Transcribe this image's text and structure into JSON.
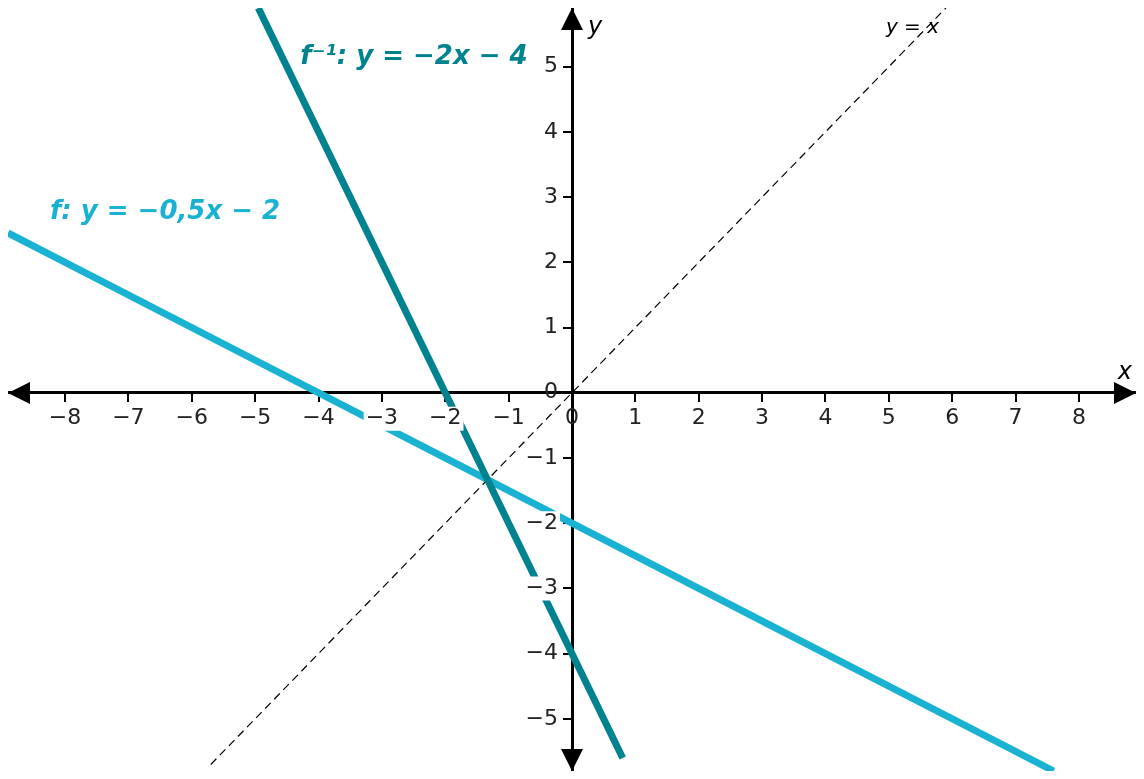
{
  "chart_data": {
    "type": "line",
    "xlabel": "x",
    "ylabel": "y",
    "xlim": [
      -8.9,
      8.9
    ],
    "ylim": [
      -5.8,
      5.9
    ],
    "xticks": [
      -8,
      -7,
      -6,
      -5,
      -4,
      -3,
      -2,
      -1,
      0,
      1,
      2,
      3,
      4,
      5,
      6,
      7,
      8
    ],
    "yticks": [
      -5,
      -4,
      -3,
      -2,
      -1,
      0,
      1,
      2,
      3,
      4,
      5
    ],
    "grid": false,
    "legend": false,
    "marker": "none",
    "series": [
      {
        "name": "f⁻¹: y = −2x − 4",
        "color": "#00838f",
        "x": [
          -4.95,
          0.8
        ],
        "values": [
          5.9,
          -5.6
        ],
        "line_style": "solid"
      },
      {
        "name": "f: y = −0,5x − 2",
        "color": "#1ab2d2",
        "x": [
          -8.9,
          7.6
        ],
        "values": [
          2.45,
          -5.8
        ],
        "line_style": "solid"
      },
      {
        "name": "y = x",
        "color": "#000000",
        "x": [
          -5.7,
          5.9
        ],
        "values": [
          -5.7,
          5.9
        ],
        "line_style": "dashed"
      }
    ]
  }
}
